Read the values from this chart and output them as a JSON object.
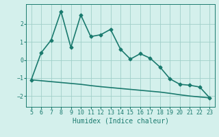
{
  "x_main": [
    5,
    6,
    7,
    8,
    9,
    10,
    11,
    12,
    13,
    14,
    15,
    16,
    17,
    18,
    19,
    20,
    21,
    22,
    23
  ],
  "y_main": [
    -1.1,
    0.4,
    1.1,
    2.7,
    0.7,
    2.5,
    1.3,
    1.4,
    1.7,
    0.6,
    0.05,
    0.35,
    0.1,
    -0.4,
    -1.05,
    -1.35,
    -1.4,
    -1.5,
    -2.1
  ],
  "x_lower": [
    5,
    6,
    7,
    8,
    9,
    10,
    11,
    12,
    13,
    14,
    15,
    16,
    17,
    18,
    19,
    20,
    21,
    22,
    23
  ],
  "y_lower": [
    -1.1,
    -1.15,
    -1.2,
    -1.25,
    -1.3,
    -1.35,
    -1.42,
    -1.48,
    -1.53,
    -1.58,
    -1.63,
    -1.68,
    -1.73,
    -1.78,
    -1.85,
    -1.93,
    -2.0,
    -2.05,
    -2.1
  ],
  "line_color": "#1a7a6e",
  "bg_color": "#d4f0ec",
  "grid_color": "#a0cfc9",
  "xlabel": "Humidex (Indice chaleur)",
  "xlim": [
    4.5,
    23.5
  ],
  "ylim": [
    -2.6,
    3.1
  ],
  "xticks": [
    5,
    6,
    7,
    8,
    9,
    10,
    11,
    12,
    13,
    14,
    15,
    16,
    17,
    18,
    19,
    20,
    21,
    22,
    23
  ],
  "yticks": [
    -2,
    -1,
    0,
    1,
    2
  ],
  "marker": "D",
  "markersize": 2.5,
  "linewidth": 1.2,
  "xlabel_fontsize": 7,
  "tick_fontsize": 6
}
